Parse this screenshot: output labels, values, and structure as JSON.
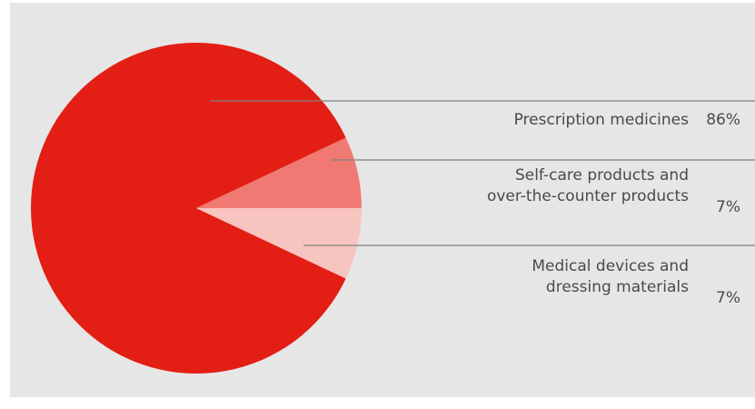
{
  "chart_data": {
    "type": "pie",
    "title": "",
    "slices": [
      {
        "label_lines": [
          "Prescription medicines"
        ],
        "value": 86,
        "value_label": "86%",
        "color": "#e31e14"
      },
      {
        "label_lines": [
          "Self-care products and",
          "over-the-counter products"
        ],
        "value": 7,
        "value_label": "7%",
        "color": "#f07a73"
      },
      {
        "label_lines": [
          "Medical devices and",
          "dressing materials"
        ],
        "value": 7,
        "value_label": "7%",
        "color": "#f8c4c0"
      }
    ],
    "background": "#e6e6e6",
    "leader_line_color": "#808080"
  }
}
